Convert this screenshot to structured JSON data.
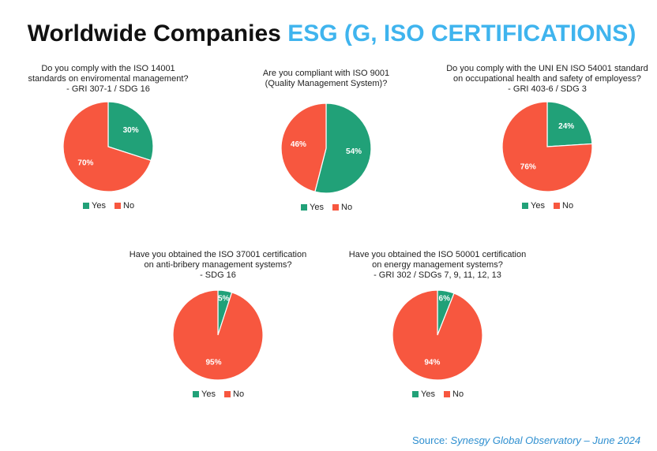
{
  "header": {
    "title": "Worldwide Companies",
    "highlight": "ESG (G, ISO CERTIFICATIONS)"
  },
  "chart_data": [
    {
      "type": "pie",
      "title": [
        "Do you comply with the ISO 14001",
        "standards on enviromental management?",
        "- GRI 307-1 / SDG 16"
      ],
      "categories": [
        "Yes",
        "No"
      ],
      "values": [
        30,
        70
      ],
      "value_labels": [
        "30%",
        "70%"
      ],
      "colors": [
        "#21a178",
        "#f7573f"
      ]
    },
    {
      "type": "pie",
      "title": [
        "Are you compliant with ISO 9001",
        "(Quality Management System)?"
      ],
      "categories": [
        "Yes",
        "No"
      ],
      "values": [
        54,
        46
      ],
      "value_labels": [
        "54%",
        "46%"
      ],
      "colors": [
        "#21a178",
        "#f7573f"
      ]
    },
    {
      "type": "pie",
      "title": [
        "Do you comply with the UNI EN ISO 54001 standard",
        "on occupational health and safety of employess?",
        "- GRI 403-6 / SDG 3"
      ],
      "categories": [
        "Yes",
        "No"
      ],
      "values": [
        24,
        76
      ],
      "value_labels": [
        "24%",
        "76%"
      ],
      "colors": [
        "#21a178",
        "#f7573f"
      ]
    },
    {
      "type": "pie",
      "title": [
        "Have you obtained the ISO 37001 certification",
        "on anti-bribery management systems?",
        "- SDG 16"
      ],
      "categories": [
        "Yes",
        "No"
      ],
      "values": [
        5,
        95
      ],
      "value_labels": [
        "5%",
        "95%"
      ],
      "colors": [
        "#21a178",
        "#f7573f"
      ]
    },
    {
      "type": "pie",
      "title": [
        "Have you obtained the ISO 50001 certification",
        "on energy management systems?",
        "- GRI 302 / SDGs 7, 9, 11, 12, 13"
      ],
      "categories": [
        "Yes",
        "No"
      ],
      "values": [
        6,
        94
      ],
      "value_labels": [
        "6%",
        "94%"
      ],
      "colors": [
        "#21a178",
        "#f7573f"
      ]
    }
  ],
  "footer": {
    "label": "Source:",
    "text": "Synesgy Global Observatory – June 2024"
  }
}
